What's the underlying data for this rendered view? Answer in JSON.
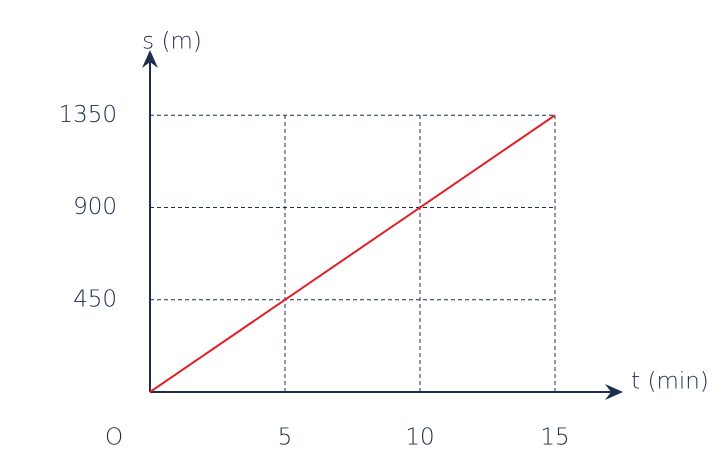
{
  "chart_data": {
    "type": "line",
    "y_label": "s (m)",
    "x_label": "t (min)",
    "origin_label": "O",
    "x": [
      0,
      15
    ],
    "series": [
      {
        "color": "#e31e24",
        "values": [
          0,
          1350
        ]
      }
    ],
    "xlim": [
      0,
      17
    ],
    "ylim": [
      0,
      1600
    ],
    "xticks": [
      5,
      10,
      15
    ],
    "yticks": [
      450,
      900,
      1350
    ],
    "grid": true
  }
}
